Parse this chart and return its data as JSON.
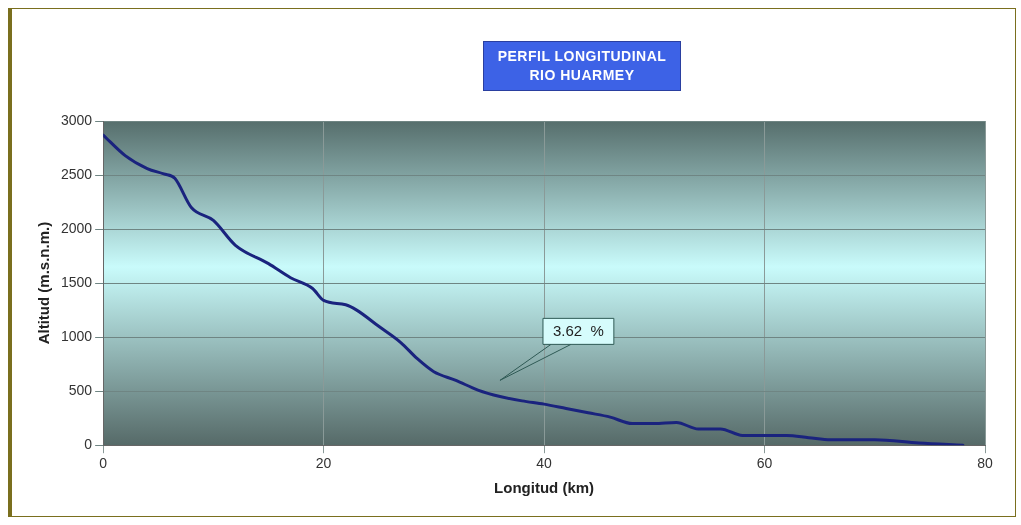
{
  "chart_data": {
    "type": "line",
    "title": "PERFIL LONGITUDINAL\nRIO HUARMEY",
    "xlabel": "Longitud (km)",
    "ylabel": "Altitud (m.s.n.m.)",
    "x": [
      0,
      2,
      4,
      5.5,
      6.5,
      8,
      10,
      12,
      15,
      17,
      19,
      20,
      22,
      23,
      25,
      27,
      28.5,
      30,
      32,
      34,
      36,
      38,
      40,
      42,
      44,
      46,
      48,
      50,
      52,
      54,
      56,
      58,
      60,
      62,
      64,
      66,
      70,
      74,
      78
    ],
    "series": [
      {
        "color": "#1a237e",
        "values": [
          2870,
          2680,
          2560,
          2510,
          2470,
          2200,
          2080,
          1850,
          1680,
          1550,
          1450,
          1340,
          1300,
          1250,
          1100,
          950,
          800,
          680,
          600,
          510,
          450,
          410,
          380,
          340,
          300,
          260,
          200,
          200,
          210,
          150,
          150,
          90,
          90,
          90,
          70,
          50,
          50,
          20,
          0
        ]
      }
    ],
    "xlim": [
      0,
      80
    ],
    "xticks": [
      0,
      20,
      40,
      60,
      80
    ],
    "ylim": [
      0,
      3000
    ],
    "yticks": [
      0,
      500,
      1000,
      1500,
      2000,
      2500,
      3000
    ],
    "grid": true,
    "legend": false,
    "marker": "none",
    "line_style": "solid",
    "annotations": [
      "3.62  %"
    ]
  }
}
